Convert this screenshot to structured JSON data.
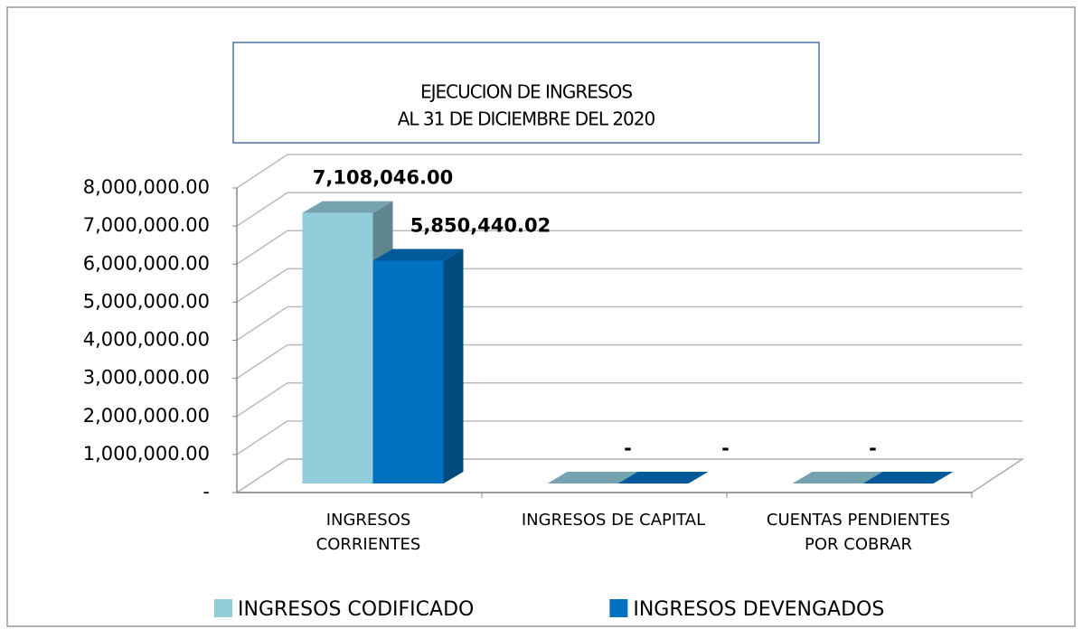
{
  "chart_data": {
    "type": "bar3d",
    "title": [
      "EJECUCION DE INGRESOS",
      "AL  31  DE  DICIEMBRE  DEL 2020"
    ],
    "categories": [
      "INGRESOS CORRIENTES",
      "INGRESOS DE CAPITAL",
      "CUENTAS PENDIENTES POR COBRAR"
    ],
    "series": [
      {
        "name": "INGRESOS CODIFICADO",
        "color": "#92cddc",
        "values": [
          7108046,
          0,
          0
        ],
        "value_labels": [
          "7,108,046.00",
          "-",
          "-"
        ]
      },
      {
        "name": "INGRESOS DEVENGADOS",
        "color": "#0070c0",
        "values": [
          5850440.02,
          0,
          0
        ],
        "value_labels": [
          "5,850,440.02",
          "-",
          null
        ]
      }
    ],
    "ylim": [
      0,
      8000000
    ],
    "yticks": [
      {
        "value": 0,
        "label": "-"
      },
      {
        "value": 1000000,
        "label": "1,000,000.00"
      },
      {
        "value": 2000000,
        "label": "2,000,000.00"
      },
      {
        "value": 3000000,
        "label": "3,000,000.00"
      },
      {
        "value": 4000000,
        "label": "4,000,000.00"
      },
      {
        "value": 5000000,
        "label": "5,000,000.00"
      },
      {
        "value": 6000000,
        "label": "6,000,000.00"
      },
      {
        "value": 7000000,
        "label": "7,000,000.00"
      },
      {
        "value": 8000000,
        "label": "8,000,000.00"
      }
    ],
    "grid": true,
    "legend": "bottom"
  }
}
